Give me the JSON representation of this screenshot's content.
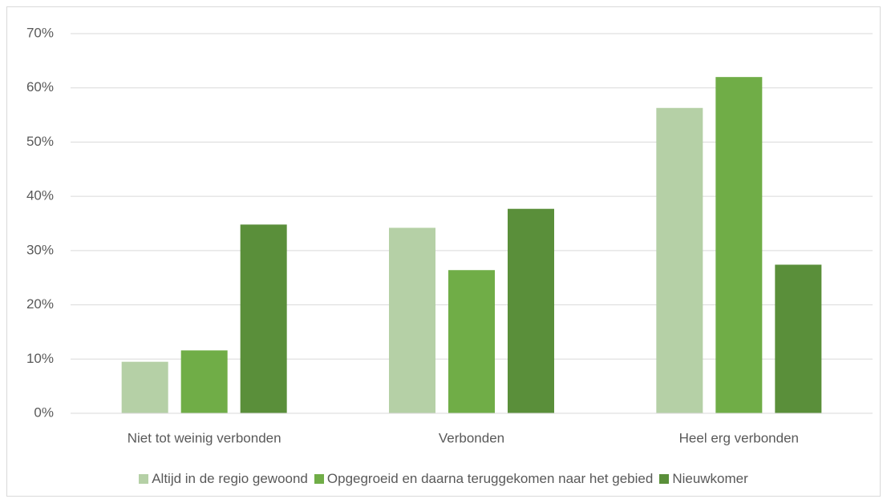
{
  "chart_data": {
    "type": "bar",
    "categories": [
      "Niet tot weinig verbonden",
      "Verbonden",
      "Heel erg verbonden"
    ],
    "series": [
      {
        "name": "Altijd in de regio gewoond",
        "color": "#b5d0a6",
        "values": [
          9.5,
          34.2,
          56.3
        ]
      },
      {
        "name": "Opgegroeid en daarna teruggekomen naar het gebied",
        "color": "#70ad47",
        "values": [
          11.6,
          26.4,
          62.0
        ]
      },
      {
        "name": "Nieuwkomer",
        "color": "#5a8f3a",
        "values": [
          34.8,
          37.7,
          27.4
        ]
      }
    ],
    "ylim": [
      0,
      70
    ],
    "yticks": [
      {
        "value": 0,
        "label": "0%"
      },
      {
        "value": 10,
        "label": "10%"
      },
      {
        "value": 20,
        "label": "20%"
      },
      {
        "value": 30,
        "label": "30%"
      },
      {
        "value": 40,
        "label": "40%"
      },
      {
        "value": 50,
        "label": "50%"
      },
      {
        "value": 60,
        "label": "60%"
      },
      {
        "value": 70,
        "label": "70%"
      }
    ],
    "grid": true,
    "legend": "bottom"
  }
}
